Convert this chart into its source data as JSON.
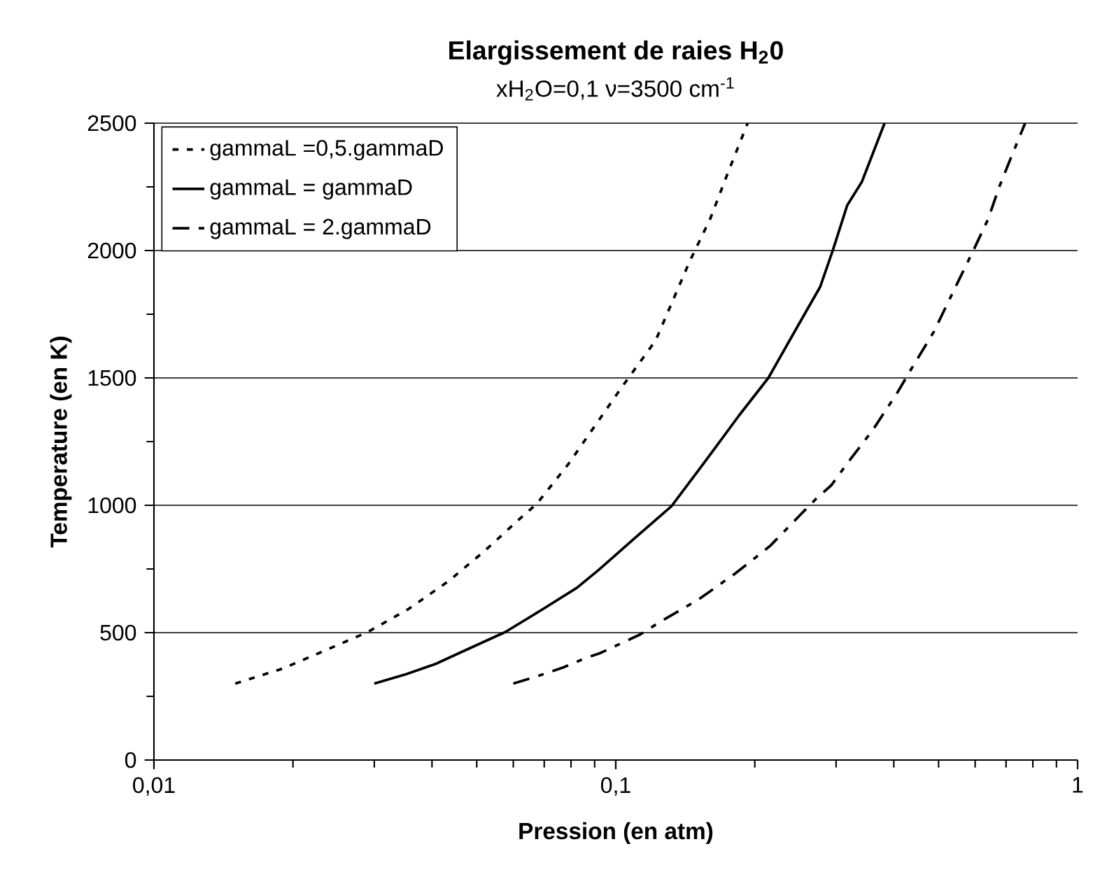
{
  "chart_data": {
    "type": "line",
    "title": "**Elargissement de raies H$_{2}$0**",
    "subtitle": "xH$_{2}$O=0,1   ν=3500 cm$^{-1}$",
    "xlabel": "Pression (en atm)",
    "ylabel": "Temperature (en K)",
    "log": "x",
    "xlim": [
      0.01,
      1
    ],
    "xticks": [
      {
        "value": 0.01,
        "label": "0,01"
      },
      {
        "value": 0.1,
        "label": "0,1"
      },
      {
        "value": 1,
        "label": "1"
      }
    ],
    "ylim": [
      0,
      2500
    ],
    "yticks": [
      0,
      500,
      1000,
      1500,
      2000,
      2500
    ],
    "grid": "y",
    "legend": "top left",
    "series": [
      {
        "name": "gammaL =0,5.gammaD",
        "color": "#000000",
        "line_style": "dashed",
        "x": [
          0.015,
          0.019,
          0.0234,
          0.029,
          0.0356,
          0.0435,
          0.0521,
          0.0623,
          0.0674,
          0.0789,
          0.103,
          0.122,
          0.1446,
          0.16,
          0.175,
          0.193
        ],
        "values": [
          300,
          359,
          429,
          502,
          593,
          703,
          822,
          951,
          1005,
          1161,
          1463,
          1647,
          1958,
          2123,
          2306,
          2500
        ]
      },
      {
        "name": "gammaL = gammaD",
        "color": "#000000",
        "line_style": "solid",
        "x": [
          0.03,
          0.0352,
          0.0407,
          0.0482,
          0.0576,
          0.0689,
          0.0824,
          0.0922,
          0.108,
          0.132,
          0.1545,
          0.185,
          0.214,
          0.2475,
          0.277,
          0.295,
          0.317,
          0.341,
          0.382
        ],
        "values": [
          300,
          337,
          377,
          438,
          502,
          588,
          676,
          749,
          859,
          996,
          1161,
          1353,
          1500,
          1702,
          1857,
          2000,
          2177,
          2269,
          2500
        ]
      },
      {
        "name": "gammaL = 2.gammaD",
        "color": "#000000",
        "line_style": "dashdot",
        "x": [
          0.06,
          0.0674,
          0.0771,
          0.0863,
          0.0923,
          0.113,
          0.1236,
          0.151,
          0.181,
          0.198,
          0.216,
          0.253,
          0.271,
          0.293,
          0.316,
          0.361,
          0.408,
          0.437,
          0.489,
          0.541,
          0.596,
          0.64,
          0.677,
          0.716,
          0.77
        ],
        "values": [
          300,
          328,
          364,
          401,
          419,
          493,
          538,
          630,
          731,
          786,
          841,
          969,
          1024,
          1079,
          1161,
          1298,
          1445,
          1537,
          1683,
          1848,
          2004,
          2123,
          2251,
          2361,
          2500
        ]
      }
    ]
  }
}
